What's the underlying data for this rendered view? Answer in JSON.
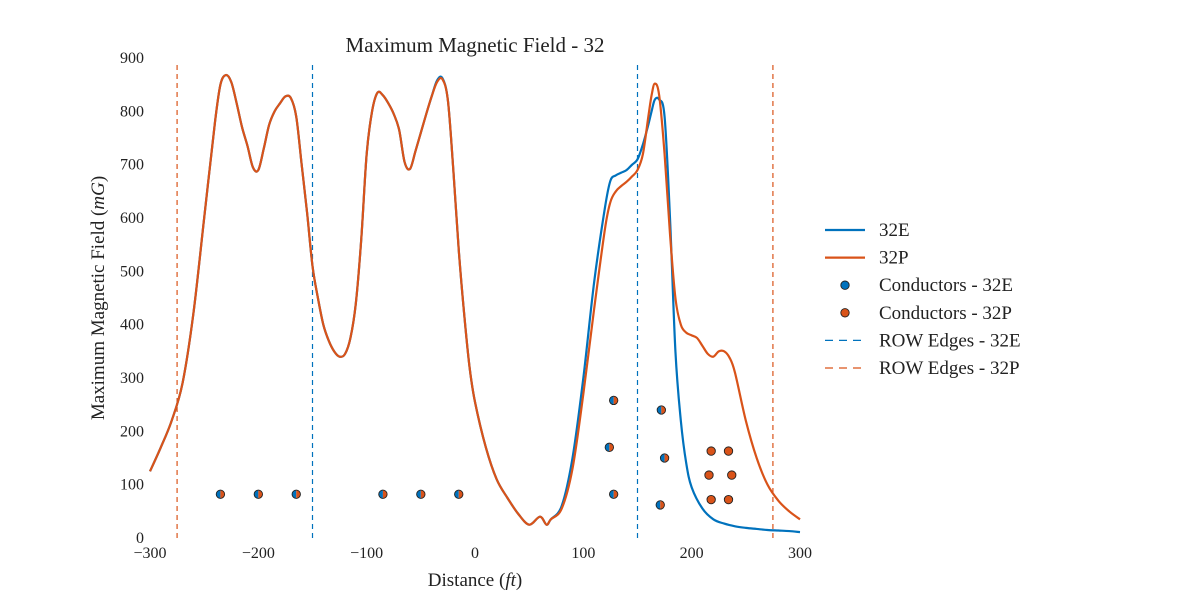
{
  "chart_data": {
    "type": "line",
    "title": "Maximum Magnetic Field - 32",
    "xlabel": {
      "prefix": "Distance ",
      "unit": "ft"
    },
    "ylabel": {
      "prefix": "Maximum Magnetic Field ",
      "unit": "mG"
    },
    "xlim": [
      -300,
      300
    ],
    "ylim": [
      0,
      900
    ],
    "x_ticks": [
      -300,
      -200,
      -100,
      0,
      100,
      200,
      300
    ],
    "x_tick_labels": [
      "−300",
      "−200",
      "−100",
      "0",
      "100",
      "200",
      "300"
    ],
    "y_ticks": [
      0,
      100,
      200,
      300,
      400,
      500,
      600,
      700,
      800,
      900
    ],
    "y_tick_labels": [
      "0",
      "100",
      "200",
      "300",
      "400",
      "500",
      "600",
      "700",
      "800",
      "900"
    ],
    "grid": false,
    "legend_position": "right",
    "colors": {
      "e": "#0072bd",
      "p": "#d95319"
    },
    "series": [
      {
        "name": "32E",
        "color": "#0072bd",
        "x": [
          -300,
          -290,
          -280,
          -270,
          -260,
          -250,
          -240,
          -235,
          -230,
          -225,
          -220,
          -215,
          -210,
          -205,
          -200,
          -195,
          -190,
          -185,
          -180,
          -175,
          -170,
          -165,
          -160,
          -155,
          -150,
          -145,
          -140,
          -135,
          -130,
          -125,
          -120,
          -115,
          -110,
          -105,
          -100,
          -95,
          -90,
          -85,
          -80,
          -75,
          -70,
          -65,
          -60,
          -55,
          -50,
          -45,
          -40,
          -35,
          -30,
          -25,
          -20,
          -15,
          -10,
          -5,
          0,
          10,
          20,
          30,
          40,
          50,
          60,
          66,
          70,
          80,
          90,
          100,
          110,
          120,
          125,
          130,
          135,
          140,
          145,
          150,
          155,
          160,
          163,
          166,
          170,
          175,
          180,
          185,
          190,
          195,
          200,
          210,
          220,
          230,
          240,
          250,
          260,
          270,
          280,
          290,
          300
        ],
        "y": [
          125,
          170,
          220,
          290,
          420,
          600,
          780,
          850,
          868,
          855,
          815,
          770,
          735,
          695,
          690,
          730,
          775,
          800,
          815,
          828,
          825,
          790,
          700,
          610,
          510,
          450,
          400,
          370,
          350,
          340,
          345,
          375,
          440,
          560,
          720,
          800,
          835,
          830,
          815,
          795,
          765,
          705,
          692,
          725,
          760,
          795,
          828,
          858,
          862,
          820,
          690,
          540,
          420,
          320,
          255,
          170,
          110,
          75,
          45,
          25,
          40,
          25,
          35,
          60,
          150,
          300,
          480,
          620,
          670,
          680,
          685,
          690,
          700,
          710,
          738,
          775,
          800,
          822,
          822,
          790,
          600,
          350,
          220,
          140,
          95,
          55,
          35,
          27,
          22,
          19,
          17,
          15,
          14,
          13,
          11
        ]
      },
      {
        "name": "32P",
        "color": "#d95319",
        "x": [
          -300,
          -290,
          -280,
          -270,
          -260,
          -250,
          -240,
          -235,
          -230,
          -225,
          -220,
          -215,
          -210,
          -205,
          -200,
          -195,
          -190,
          -185,
          -180,
          -175,
          -170,
          -165,
          -160,
          -155,
          -150,
          -145,
          -140,
          -135,
          -130,
          -125,
          -120,
          -115,
          -110,
          -105,
          -100,
          -95,
          -90,
          -85,
          -80,
          -75,
          -70,
          -65,
          -60,
          -55,
          -50,
          -45,
          -40,
          -35,
          -30,
          -25,
          -20,
          -15,
          -10,
          -5,
          0,
          10,
          20,
          30,
          40,
          50,
          60,
          66,
          70,
          80,
          90,
          100,
          110,
          120,
          125,
          130,
          135,
          140,
          145,
          150,
          155,
          160,
          163,
          166,
          170,
          175,
          180,
          185,
          190,
          195,
          200,
          205,
          210,
          215,
          220,
          225,
          230,
          235,
          240,
          250,
          260,
          270,
          280,
          290,
          300
        ],
        "y": [
          125,
          170,
          220,
          290,
          420,
          600,
          780,
          850,
          868,
          855,
          815,
          770,
          735,
          695,
          690,
          730,
          775,
          800,
          815,
          828,
          825,
          790,
          700,
          610,
          510,
          450,
          400,
          370,
          350,
          340,
          345,
          375,
          440,
          560,
          720,
          800,
          835,
          830,
          815,
          795,
          765,
          705,
          692,
          725,
          760,
          795,
          828,
          855,
          860,
          820,
          690,
          540,
          420,
          320,
          255,
          170,
          110,
          75,
          45,
          25,
          40,
          25,
          35,
          55,
          130,
          270,
          430,
          580,
          630,
          650,
          660,
          668,
          678,
          690,
          720,
          790,
          830,
          852,
          830,
          720,
          570,
          450,
          400,
          385,
          380,
          375,
          360,
          345,
          340,
          350,
          350,
          338,
          310,
          220,
          150,
          100,
          70,
          50,
          35
        ]
      }
    ],
    "conductors_e": {
      "name": "Conductors - 32E",
      "x": [
        -235,
        -200,
        -165,
        -85,
        -50,
        -15,
        128,
        128,
        124,
        172,
        175,
        171
      ],
      "y": [
        82,
        82,
        82,
        82,
        82,
        82,
        82,
        258,
        170,
        240,
        150,
        62
      ]
    },
    "conductors_p": {
      "name": "Conductors - 32P",
      "x": [
        -235,
        -200,
        -165,
        -85,
        -50,
        -15,
        128,
        128,
        124,
        172,
        175,
        171,
        218,
        218,
        216,
        234,
        234,
        237
      ],
      "y": [
        82,
        82,
        82,
        82,
        82,
        82,
        82,
        258,
        170,
        240,
        150,
        62,
        72,
        163,
        118,
        72,
        163,
        118
      ]
    },
    "row_edges_e": {
      "name": "ROW Edges - 32E",
      "x": [
        -150,
        150
      ]
    },
    "row_edges_p": {
      "name": "ROW Edges - 32P",
      "x": [
        -275,
        275
      ]
    },
    "legend": [
      "32E",
      "32P",
      "Conductors - 32E",
      "Conductors - 32P",
      "ROW Edges - 32E",
      "ROW Edges - 32P"
    ]
  }
}
